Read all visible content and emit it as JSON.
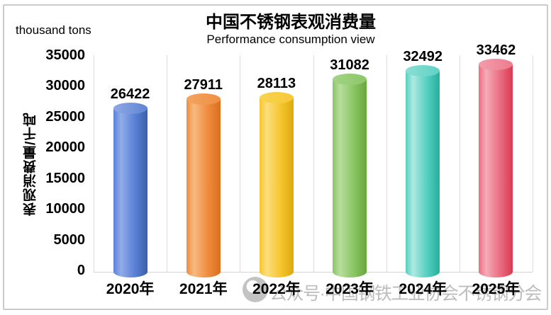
{
  "chart_data": {
    "type": "bar",
    "variant": "3d-cylinder",
    "title": "中国不锈钢表观消费量",
    "subtitle": "Performance consumption view",
    "units_label": "thousand tons",
    "ylabel": "表观消费量/千吨",
    "xlabel": "",
    "categories": [
      "2020年",
      "2021年",
      "2022年",
      "2023年",
      "2024年",
      "2025年"
    ],
    "values": [
      26422,
      27911,
      28113,
      31082,
      32492,
      33462
    ],
    "ylim": [
      0,
      35000
    ],
    "ytick_interval": 5000,
    "yticks": [
      35000,
      30000,
      25000,
      20000,
      15000,
      10000,
      5000,
      0
    ],
    "grid": "vertical-category-separators",
    "legend_position": "none",
    "data_labels_visible": true,
    "bar_styles": [
      {
        "name": "blue",
        "light": "#92ACE8",
        "mid": "#5B82D8",
        "dark": "#3B5EA5",
        "top_light": "#8FA8E5",
        "top_dark": "#5F84D4"
      },
      {
        "name": "orange",
        "light": "#F7BA80",
        "mid": "#F08C3E",
        "dark": "#D96F1E",
        "top_light": "#F3A360",
        "top_dark": "#EF8F45"
      },
      {
        "name": "yellow",
        "light": "#FBDF7D",
        "mid": "#F6C52E",
        "dark": "#DCA90F",
        "top_light": "#F9D44F",
        "top_dark": "#F6C837"
      },
      {
        "name": "green",
        "light": "#B7DE9D",
        "mid": "#8AC663",
        "dark": "#67A63D",
        "top_light": "#A3D385",
        "top_dark": "#8CC767"
      },
      {
        "name": "teal",
        "light": "#AEE9E1",
        "mid": "#56D0C1",
        "dark": "#26AE9E",
        "top_light": "#8ADFD4",
        "top_dark": "#5FD2C4"
      },
      {
        "name": "red",
        "light": "#F5ABB8",
        "mid": "#EB6E82",
        "dark": "#D83A52",
        "top_light": "#F29DAC",
        "top_dark": "#ED7C8E"
      }
    ]
  },
  "watermark": {
    "icon": "wechat-official-account-logo",
    "text": "公众号·中国钢铁工业协会不锈钢分会",
    "color": "#bdbdbd"
  },
  "frame_color": "#cbcbcb"
}
